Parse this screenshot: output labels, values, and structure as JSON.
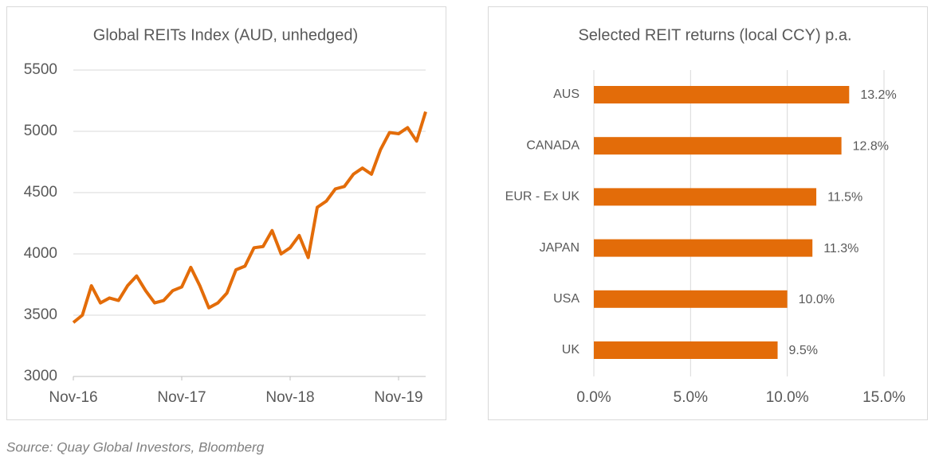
{
  "chart_data": [
    {
      "type": "line",
      "title": "Global REITs Index (AUD, unhedged)",
      "x": [
        "Nov-16",
        null,
        null,
        null,
        null,
        null,
        null,
        null,
        null,
        null,
        null,
        null,
        "Nov-17",
        null,
        null,
        null,
        null,
        null,
        null,
        null,
        null,
        null,
        null,
        null,
        "Nov-18",
        null,
        null,
        null,
        null,
        null,
        null,
        null,
        null,
        null,
        null,
        null,
        "Nov-19",
        null,
        null,
        null
      ],
      "values": [
        3440,
        3500,
        3740,
        3600,
        3640,
        3620,
        3740,
        3820,
        3700,
        3600,
        3620,
        3700,
        3730,
        3890,
        3740,
        3560,
        3600,
        3680,
        3870,
        3900,
        4050,
        4060,
        4190,
        4000,
        4050,
        4150,
        3970,
        4380,
        4430,
        4530,
        4550,
        4650,
        4700,
        4650,
        4850,
        4990,
        4980,
        5030,
        4920,
        5160
      ],
      "color": "#e36c09",
      "ylim": [
        3000,
        5500
      ],
      "yticks": [
        3000,
        3500,
        4000,
        4500,
        5000,
        5500
      ],
      "grid": true
    },
    {
      "type": "hbar",
      "title": "Selected REIT returns (local CCY) p.a.",
      "categories": [
        "AUS",
        "CANADA",
        "EUR - Ex UK",
        "JAPAN",
        "USA",
        "UK"
      ],
      "values": [
        13.2,
        12.8,
        11.5,
        11.3,
        10.0,
        9.5
      ],
      "value_labels": [
        "13.2%",
        "12.8%",
        "11.5%",
        "11.3%",
        "10.0%",
        "9.5%"
      ],
      "color": "#e36c09",
      "xlim": [
        0,
        15
      ],
      "xticks": [
        {
          "value": 0,
          "label": "0.0%"
        },
        {
          "value": 5,
          "label": "5.0%"
        },
        {
          "value": 10,
          "label": "10.0%"
        },
        {
          "value": 15,
          "label": "15.0%"
        }
      ],
      "grid": true
    }
  ],
  "source": "Source: Quay Global Investors, Bloomberg"
}
